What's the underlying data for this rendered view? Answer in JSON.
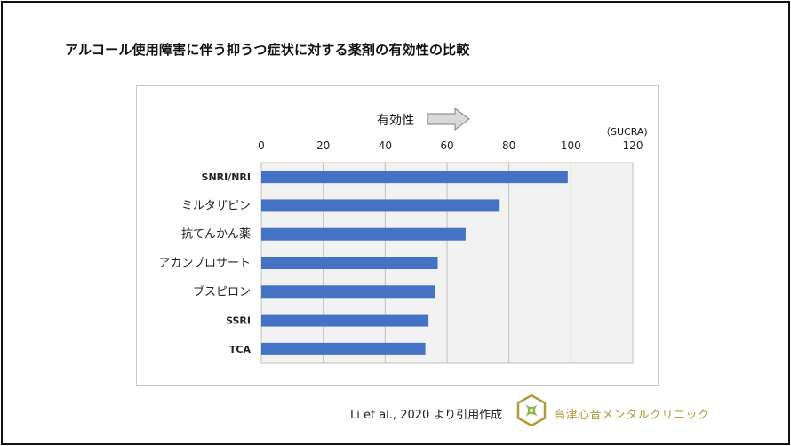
{
  "title": "アルコール使用障害に伴う抑うつ症状に対する薬剤の有効性の比較",
  "effectiveness_label": "有効性",
  "unit_label": "（SUCRA)",
  "citation": "Li et al., 2020 より引用作成",
  "clinic_name": "高津心音メンタルクリニック",
  "colors": {
    "bar": "#4472c4",
    "plot_bg": "#f2f2f2",
    "grid": "#bfbfbf",
    "logo": "#b29a3a"
  },
  "chart_data": {
    "type": "bar",
    "orientation": "horizontal",
    "categories": [
      "SNRI/NRI",
      "ミルタザピン",
      "抗てんかん薬",
      "アカンプロサート",
      "ブスピロン",
      "SSRI",
      "TCA"
    ],
    "values": [
      99,
      77,
      66,
      57,
      56,
      54,
      53
    ],
    "xlim": [
      0,
      120
    ],
    "xticks": [
      0,
      20,
      40,
      60,
      80,
      100,
      120
    ],
    "xaxis_position": "top",
    "grid": true
  }
}
